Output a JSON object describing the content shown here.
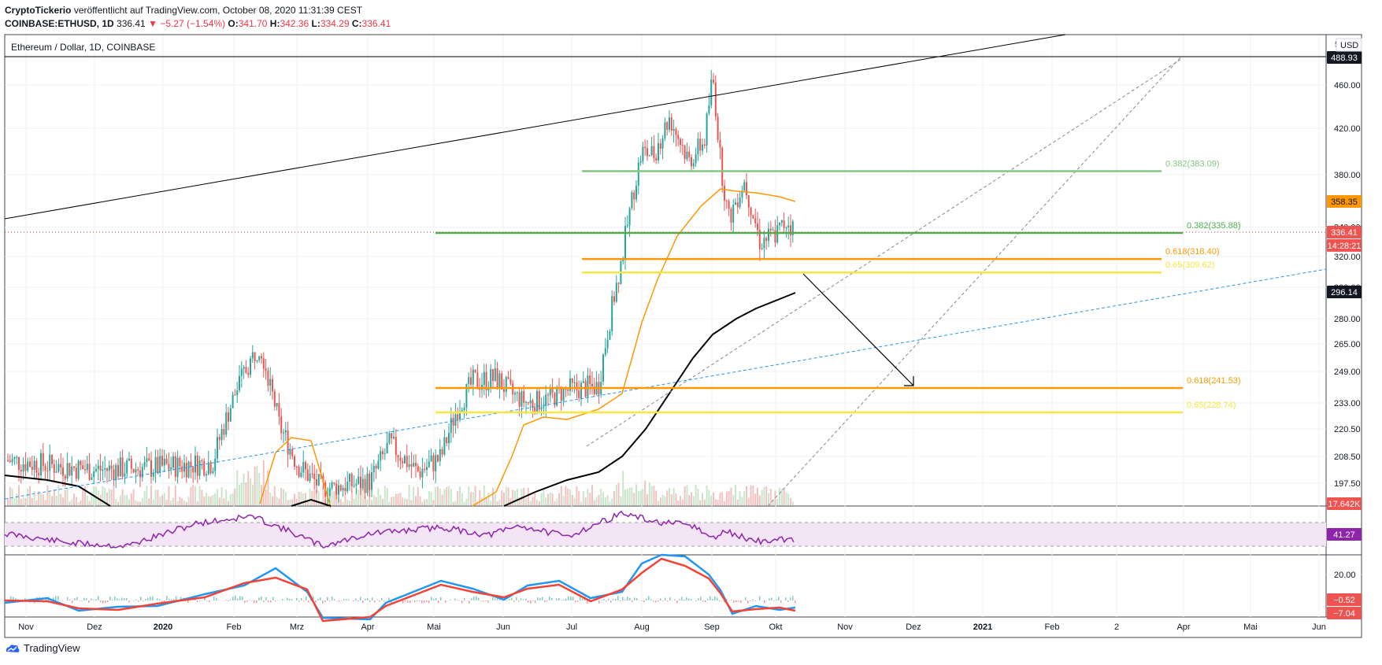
{
  "header": {
    "publisher": "CryptoTickerio",
    "published_text": "veröffentlicht auf TradingView.com, October 08, 2020 11:31:39 CEST",
    "symbol": "COINBASE:ETHUSD, 1D",
    "last": "336.41",
    "change": "−5.27 (−1.54%)",
    "o_label": "O:",
    "o": "341.70",
    "h_label": "H:",
    "h": "342.36",
    "l_label": "L:",
    "l": "334.29",
    "c_label": "C:",
    "c": "336.41"
  },
  "pane_title": "Ethereum / Dollar, 1D, COINBASE",
  "currency": "USD",
  "footer": {
    "brand": "TradingView"
  },
  "colors": {
    "up": "#26a69a",
    "down": "#ef5350",
    "orange": "#ff9800",
    "black": "#000000",
    "green_fib": "#81c784",
    "yellow_fib": "#f5e642",
    "blue_dash": "#2196f3",
    "rsi": "#8e24aa",
    "macd": "#2196f3",
    "signal": "#f44336"
  },
  "chart_data": {
    "type": "candlestick",
    "title": "Ethereum / Dollar, 1D, COINBASE",
    "x_ticks": [
      "Nov",
      "Dez",
      "2020",
      "Feb",
      "Mrz",
      "Apr",
      "Mai",
      "Jun",
      "Jul",
      "Aug",
      "Sep",
      "Okt",
      "Nov",
      "Dez",
      "2021",
      "Feb",
      "2",
      "Apr",
      "Mai",
      "Jun"
    ],
    "y_ticks": [
      "460.00",
      "420.00",
      "380.00",
      "340.00",
      "320.00",
      "300.00",
      "280.00",
      "265.00",
      "249.00",
      "233.00",
      "220.50",
      "208.50",
      "197.50"
    ],
    "y_top_tick": "5",
    "price_tags": [
      {
        "label": "488.93",
        "value": 488.93,
        "style": "black"
      },
      {
        "label": "358.35",
        "value": 358.35,
        "style": "orange"
      },
      {
        "label": "336.41",
        "value": 336.41,
        "style": "red"
      },
      {
        "label": "14:28:21",
        "value": 327.5,
        "style": "red"
      },
      {
        "label": "296.14",
        "value": 296.14,
        "style": "black"
      },
      {
        "label": "17.642K",
        "value": 188.0,
        "style": "red"
      }
    ],
    "fib_levels": [
      {
        "label": "0.382(383.09)",
        "value": 383.09,
        "color": "#81c784",
        "from": "Aug",
        "to": "Mrz"
      },
      {
        "label": "0.382(335.88)",
        "value": 335.88,
        "color": "#4caf50",
        "from": "Mai",
        "to": "Mrz"
      },
      {
        "label": "0.618(318.40)",
        "value": 318.4,
        "color": "#ff9800",
        "from": "Aug",
        "to": "Mrz"
      },
      {
        "label": "0.65(309.62)",
        "value": 309.62,
        "color": "#f5e642",
        "from": "Aug",
        "to": "Mrz"
      },
      {
        "label": "0.618(241.53)",
        "value": 241.53,
        "color": "#ff9800",
        "from": "Mai",
        "to": "Apr"
      },
      {
        "label": "0.65(228.74)",
        "value": 228.74,
        "color": "#f5e642",
        "from": "Mai",
        "to": "Apr"
      }
    ],
    "key_prices": {
      "high": 488.93,
      "last": 336.41,
      "ma_orange": 358.35,
      "ma_black": 296.14
    },
    "rsi": {
      "value_label": "41.27",
      "value": 41.27,
      "upper": 70,
      "lower": 30
    },
    "macd": {
      "ticks": [
        "20.00"
      ],
      "value_labels": [
        "−0.52",
        "−7.04"
      ]
    }
  }
}
